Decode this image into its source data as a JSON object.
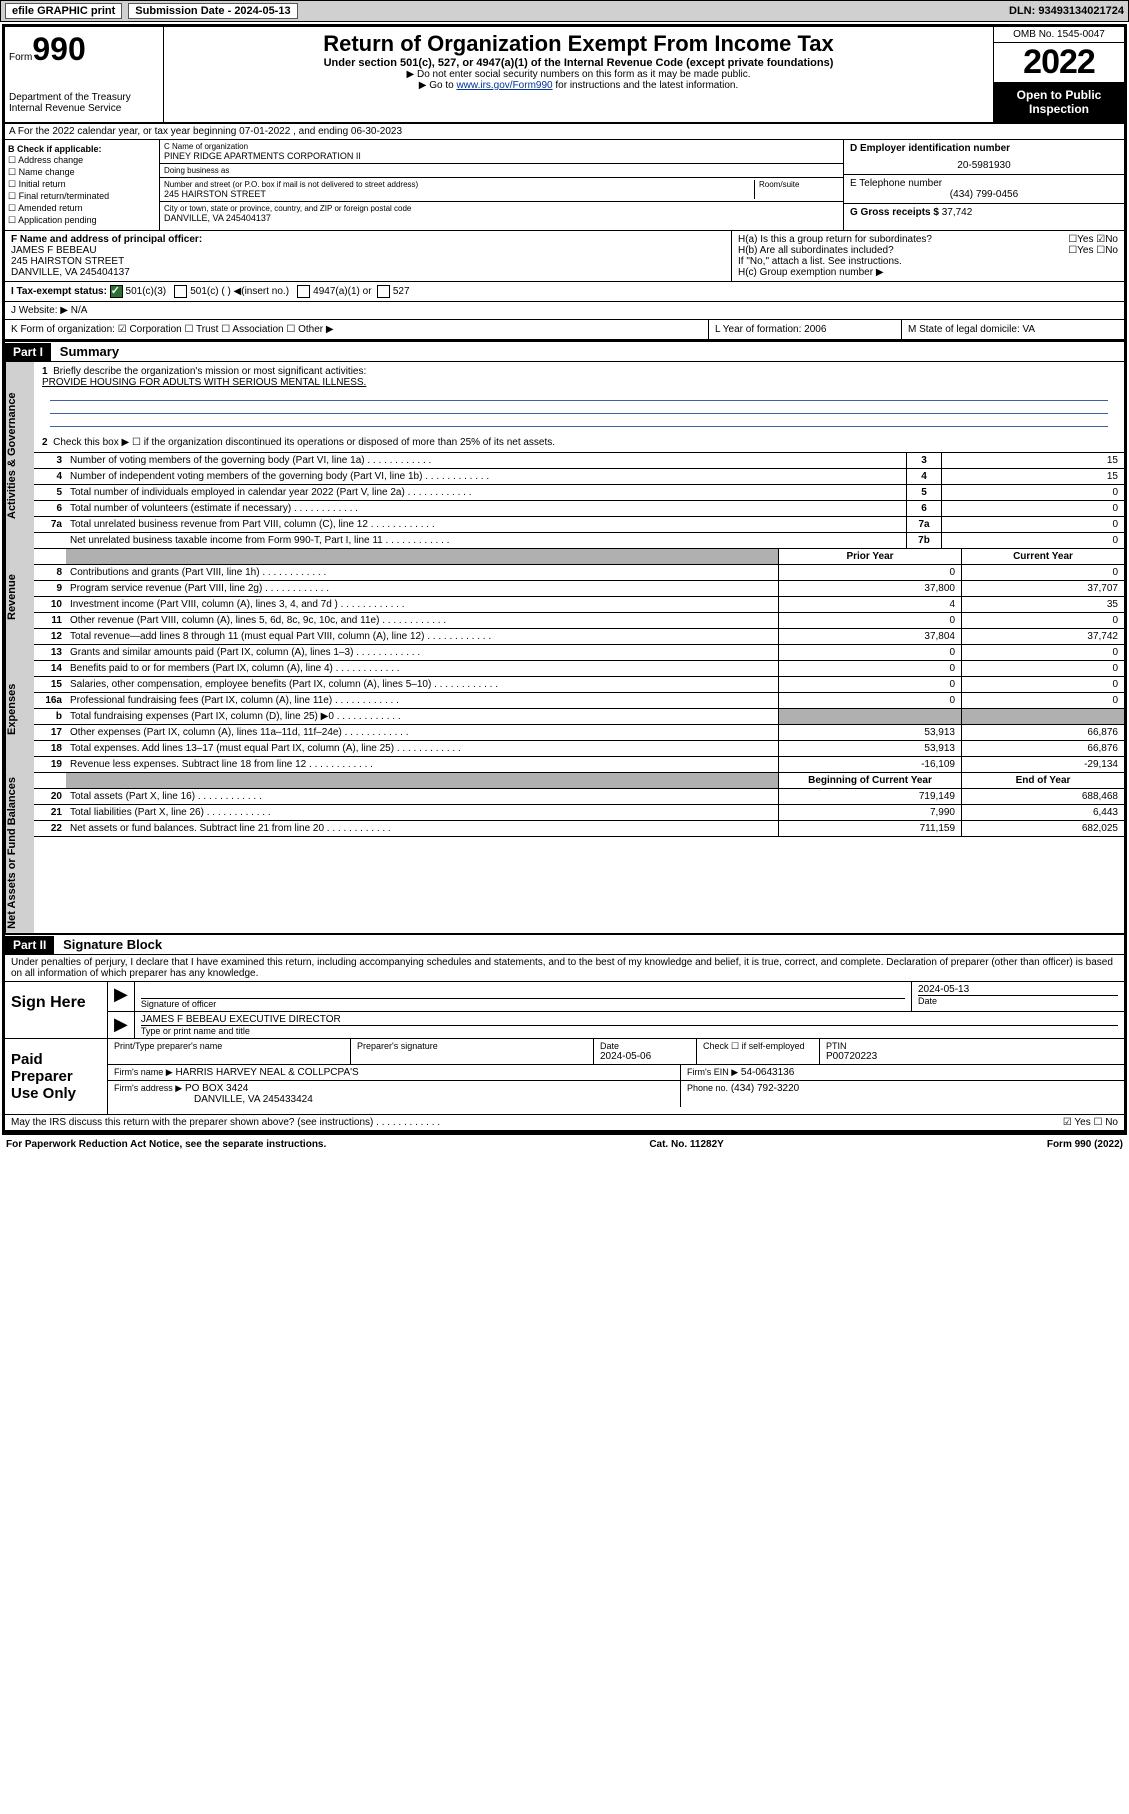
{
  "topbar": {
    "efile": "efile GRAPHIC print",
    "submission_label": "Submission Date - 2024-05-13",
    "dln": "DLN: 93493134021724"
  },
  "header": {
    "form_prefix": "Form",
    "form_number": "990",
    "dept": "Department of the Treasury",
    "irs": "Internal Revenue Service",
    "title": "Return of Organization Exempt From Income Tax",
    "sub": "Under section 501(c), 527, or 4947(a)(1) of the Internal Revenue Code (except private foundations)",
    "note1": "▶ Do not enter social security numbers on this form as it may be made public.",
    "note2_pre": "▶ Go to ",
    "note2_link": "www.irs.gov/Form990",
    "note2_post": " for instructions and the latest information.",
    "omb": "OMB No. 1545-0047",
    "year": "2022",
    "open": "Open to Public Inspection"
  },
  "row_a": "A For the 2022 calendar year, or tax year beginning 07-01-2022   , and ending 06-30-2023",
  "col_b": {
    "hdr": "B Check if applicable:",
    "items": [
      "☐ Address change",
      "☐ Name change",
      "☐ Initial return",
      "☐ Final return/terminated",
      "☐ Amended return",
      "☐ Application pending"
    ]
  },
  "col_c": {
    "name_label": "C Name of organization",
    "name": "PINEY RIDGE APARTMENTS CORPORATION II",
    "dba_label": "Doing business as",
    "dba": "",
    "addr_label": "Number and street (or P.O. box if mail is not delivered to street address)",
    "addr": "245 HAIRSTON STREET",
    "room_label": "Room/suite",
    "city_label": "City or town, state or province, country, and ZIP or foreign postal code",
    "city": "DANVILLE, VA  245404137"
  },
  "col_d": {
    "ein_label": "D Employer identification number",
    "ein": "20-5981930",
    "phone_label": "E Telephone number",
    "phone": "(434) 799-0456",
    "gross_label": "G Gross receipts $",
    "gross": "37,742"
  },
  "f": {
    "label": "F  Name and address of principal officer:",
    "name": "JAMES F BEBEAU",
    "addr1": "245 HAIRSTON STREET",
    "addr2": "DANVILLE, VA  245404137"
  },
  "h": {
    "a": "H(a)  Is this a group return for subordinates?",
    "a_ans": "☐Yes ☑No",
    "b": "H(b)  Are all subordinates included?",
    "b_ans": "☐Yes ☐No",
    "b_note": "If \"No,\" attach a list. See instructions.",
    "c": "H(c)  Group exemption number ▶"
  },
  "i": {
    "label": "I     Tax-exempt status:",
    "c3": "501(c)(3)",
    "c": "501(c) (  ) ◀(insert no.)",
    "a1": "4947(a)(1) or",
    "527": "527"
  },
  "j": "J    Website: ▶  N/A",
  "k": "K Form of organization:  ☑ Corporation  ☐ Trust  ☐ Association  ☐ Other ▶",
  "l": "L Year of formation: 2006",
  "m": "M State of legal domicile: VA",
  "part1": {
    "hdr": "Part I",
    "title": "Summary",
    "q1": "Briefly describe the organization's mission or most significant activities:",
    "mission": "PROVIDE HOUSING FOR ADULTS WITH SERIOUS MENTAL ILLNESS.",
    "q2": "Check this box ▶ ☐  if the organization discontinued its operations or disposed of more than 25% of its net assets.",
    "tabs": {
      "gov": "Activities & Governance",
      "rev": "Revenue",
      "exp": "Expenses",
      "net": "Net Assets or Fund Balances"
    },
    "rows_gov": [
      {
        "n": "3",
        "desc": "Number of voting members of the governing body (Part VI, line 1a)",
        "box": "3",
        "val": "15"
      },
      {
        "n": "4",
        "desc": "Number of independent voting members of the governing body (Part VI, line 1b)",
        "box": "4",
        "val": "15"
      },
      {
        "n": "5",
        "desc": "Total number of individuals employed in calendar year 2022 (Part V, line 2a)",
        "box": "5",
        "val": "0"
      },
      {
        "n": "6",
        "desc": "Total number of volunteers (estimate if necessary)",
        "box": "6",
        "val": "0"
      },
      {
        "n": "7a",
        "desc": "Total unrelated business revenue from Part VIII, column (C), line 12",
        "box": "7a",
        "val": "0"
      },
      {
        "n": "",
        "desc": "Net unrelated business taxable income from Form 990-T, Part I, line 11",
        "box": "7b",
        "val": "0"
      }
    ],
    "two_col_hdr": {
      "prior": "Prior Year",
      "current": "Current Year"
    },
    "rows_rev": [
      {
        "n": "8",
        "desc": "Contributions and grants (Part VIII, line 1h)",
        "p": "0",
        "c": "0"
      },
      {
        "n": "9",
        "desc": "Program service revenue (Part VIII, line 2g)",
        "p": "37,800",
        "c": "37,707"
      },
      {
        "n": "10",
        "desc": "Investment income (Part VIII, column (A), lines 3, 4, and 7d )",
        "p": "4",
        "c": "35"
      },
      {
        "n": "11",
        "desc": "Other revenue (Part VIII, column (A), lines 5, 6d, 8c, 9c, 10c, and 11e)",
        "p": "0",
        "c": "0"
      },
      {
        "n": "12",
        "desc": "Total revenue—add lines 8 through 11 (must equal Part VIII, column (A), line 12)",
        "p": "37,804",
        "c": "37,742"
      }
    ],
    "rows_exp": [
      {
        "n": "13",
        "desc": "Grants and similar amounts paid (Part IX, column (A), lines 1–3)",
        "p": "0",
        "c": "0"
      },
      {
        "n": "14",
        "desc": "Benefits paid to or for members (Part IX, column (A), line 4)",
        "p": "0",
        "c": "0"
      },
      {
        "n": "15",
        "desc": "Salaries, other compensation, employee benefits (Part IX, column (A), lines 5–10)",
        "p": "0",
        "c": "0"
      },
      {
        "n": "16a",
        "desc": "Professional fundraising fees (Part IX, column (A), line 11e)",
        "p": "0",
        "c": "0"
      },
      {
        "n": "b",
        "desc": "Total fundraising expenses (Part IX, column (D), line 25) ▶0",
        "p": "",
        "c": "",
        "grey": true
      },
      {
        "n": "17",
        "desc": "Other expenses (Part IX, column (A), lines 11a–11d, 11f–24e)",
        "p": "53,913",
        "c": "66,876"
      },
      {
        "n": "18",
        "desc": "Total expenses. Add lines 13–17 (must equal Part IX, column (A), line 25)",
        "p": "53,913",
        "c": "66,876"
      },
      {
        "n": "19",
        "desc": "Revenue less expenses. Subtract line 18 from line 12",
        "p": "-16,109",
        "c": "-29,134"
      }
    ],
    "net_hdr": {
      "begin": "Beginning of Current Year",
      "end": "End of Year"
    },
    "rows_net": [
      {
        "n": "20",
        "desc": "Total assets (Part X, line 16)",
        "p": "719,149",
        "c": "688,468"
      },
      {
        "n": "21",
        "desc": "Total liabilities (Part X, line 26)",
        "p": "7,990",
        "c": "6,443"
      },
      {
        "n": "22",
        "desc": "Net assets or fund balances. Subtract line 21 from line 20",
        "p": "711,159",
        "c": "682,025"
      }
    ]
  },
  "part2": {
    "hdr": "Part II",
    "title": "Signature Block",
    "decl": "Under penalties of perjury, I declare that I have examined this return, including accompanying schedules and statements, and to the best of my knowledge and belief, it is true, correct, and complete. Declaration of preparer (other than officer) is based on all information of which preparer has any knowledge.",
    "sign_here": "Sign Here",
    "sig_officer": "Signature of officer",
    "sig_date": "2024-05-13",
    "date_label": "Date",
    "officer_name": "JAMES F BEBEAU  EXECUTIVE DIRECTOR",
    "type_name": "Type or print name and title",
    "paid": "Paid Preparer Use Only",
    "prep_name_label": "Print/Type preparer's name",
    "prep_sig_label": "Preparer's signature",
    "prep_date_label": "Date",
    "prep_date": "2024-05-06",
    "check_label": "Check ☐ if self-employed",
    "ptin_label": "PTIN",
    "ptin": "P00720223",
    "firm_name_label": "Firm's name    ▶",
    "firm_name": "HARRIS HARVEY NEAL & COLLPCPA'S",
    "firm_ein_label": "Firm's EIN ▶",
    "firm_ein": "54-0643136",
    "firm_addr_label": "Firm's address ▶",
    "firm_addr1": "PO BOX 3424",
    "firm_addr2": "DANVILLE, VA  245433424",
    "firm_phone_label": "Phone no.",
    "firm_phone": "(434) 792-3220",
    "discuss": "May the IRS discuss this return with the preparer shown above? (see instructions)",
    "discuss_ans": "☑ Yes  ☐ No"
  },
  "footer": {
    "left": "For Paperwork Reduction Act Notice, see the separate instructions.",
    "mid": "Cat. No. 11282Y",
    "right": "Form 990 (2022)"
  }
}
